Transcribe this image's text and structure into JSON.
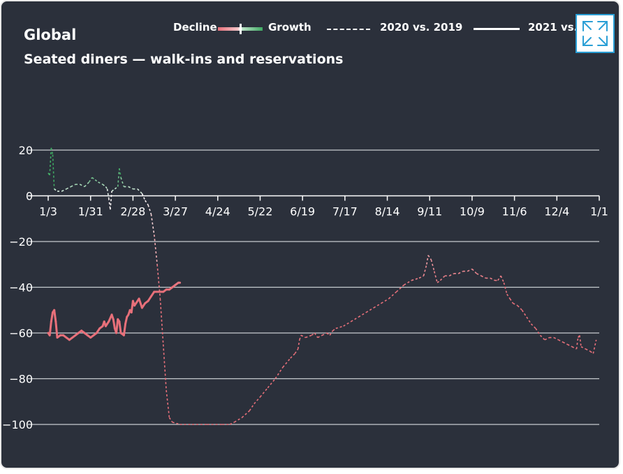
{
  "header": {
    "line1": "Global",
    "line2": "Seated diners — walk-ins and reservations"
  },
  "legend": {
    "decline_label": "Decline",
    "growth_label": "Growth",
    "series_2020_label": "2020 vs. 2019",
    "series_2021_label": "2021 vs. 2"
  },
  "expand_button": {
    "icon": "expand-arrows-icon"
  },
  "colors": {
    "background": "#2b303b",
    "grid": "#c8cbd0",
    "decline": "#e8707a",
    "growth": "#3fa963",
    "neutral": "#ffffff",
    "accent": "#2a9fd6"
  },
  "chart_data": {
    "type": "line",
    "title": "Global",
    "subtitle": "Seated diners — walk-ins and reservations",
    "x_tick_labels": [
      "1/3",
      "1/31",
      "2/28",
      "3/27",
      "4/24",
      "5/22",
      "6/19",
      "7/17",
      "8/14",
      "9/11",
      "10/9",
      "11/6",
      "12/4",
      "1/1"
    ],
    "x_domain_days": [
      0,
      364
    ],
    "y_ticks": [
      20,
      0,
      -20,
      -40,
      -60,
      -80,
      -100
    ],
    "ylim": [
      -100,
      20
    ],
    "grid": "horizontal",
    "legend_position": "top",
    "series": [
      {
        "name": "2020 vs. 2019",
        "style": "dashed",
        "points": [
          [
            0,
            10
          ],
          [
            1,
            9
          ],
          [
            2,
            21
          ],
          [
            3,
            18
          ],
          [
            4,
            3
          ],
          [
            6,
            2
          ],
          [
            9,
            2
          ],
          [
            12,
            3
          ],
          [
            15,
            4
          ],
          [
            18,
            5
          ],
          [
            21,
            5
          ],
          [
            24,
            4
          ],
          [
            27,
            6
          ],
          [
            29,
            8
          ],
          [
            31,
            7
          ],
          [
            33,
            6
          ],
          [
            36,
            5
          ],
          [
            38,
            4
          ],
          [
            39,
            3
          ],
          [
            40,
            -1
          ],
          [
            41,
            -6
          ],
          [
            42,
            2
          ],
          [
            44,
            3
          ],
          [
            46,
            4
          ],
          [
            47,
            12
          ],
          [
            48,
            8
          ],
          [
            50,
            4
          ],
          [
            53,
            4
          ],
          [
            56,
            3
          ],
          [
            59,
            3
          ],
          [
            62,
            1
          ],
          [
            64,
            -2
          ],
          [
            66,
            -4
          ],
          [
            68,
            -8
          ],
          [
            70,
            -17
          ],
          [
            72,
            -30
          ],
          [
            74,
            -45
          ],
          [
            76,
            -65
          ],
          [
            78,
            -85
          ],
          [
            80,
            -97
          ],
          [
            82,
            -99
          ],
          [
            87,
            -100
          ],
          [
            95,
            -100
          ],
          [
            105,
            -100
          ],
          [
            115,
            -100
          ],
          [
            120,
            -100
          ],
          [
            123,
            -99
          ],
          [
            128,
            -97
          ],
          [
            133,
            -94
          ],
          [
            136,
            -91
          ],
          [
            140,
            -88
          ],
          [
            145,
            -84
          ],
          [
            150,
            -80
          ],
          [
            155,
            -75
          ],
          [
            160,
            -71
          ],
          [
            163,
            -69
          ],
          [
            165,
            -67
          ],
          [
            166,
            -63
          ],
          [
            167,
            -61
          ],
          [
            170,
            -62
          ],
          [
            174,
            -61
          ],
          [
            176,
            -60
          ],
          [
            178,
            -62
          ],
          [
            181,
            -61
          ],
          [
            184,
            -60
          ],
          [
            186,
            -61
          ],
          [
            188,
            -59
          ],
          [
            190,
            -58
          ],
          [
            195,
            -57
          ],
          [
            200,
            -55
          ],
          [
            205,
            -53
          ],
          [
            210,
            -51
          ],
          [
            215,
            -49
          ],
          [
            220,
            -47
          ],
          [
            225,
            -45
          ],
          [
            230,
            -42
          ],
          [
            235,
            -39
          ],
          [
            240,
            -37
          ],
          [
            245,
            -36
          ],
          [
            248,
            -35
          ],
          [
            250,
            -30
          ],
          [
            251,
            -26
          ],
          [
            253,
            -28
          ],
          [
            255,
            -33
          ],
          [
            257,
            -38
          ],
          [
            259,
            -37
          ],
          [
            262,
            -35
          ],
          [
            265,
            -35
          ],
          [
            268,
            -34
          ],
          [
            271,
            -34
          ],
          [
            274,
            -33
          ],
          [
            277,
            -33
          ],
          [
            280,
            -32
          ],
          [
            283,
            -34
          ],
          [
            286,
            -35
          ],
          [
            289,
            -36
          ],
          [
            292,
            -36
          ],
          [
            295,
            -37
          ],
          [
            297,
            -37
          ],
          [
            299,
            -35
          ],
          [
            301,
            -38
          ],
          [
            303,
            -43
          ],
          [
            305,
            -45
          ],
          [
            307,
            -47
          ],
          [
            310,
            -48
          ],
          [
            313,
            -50
          ],
          [
            316,
            -53
          ],
          [
            319,
            -56
          ],
          [
            322,
            -58
          ],
          [
            325,
            -61
          ],
          [
            328,
            -63
          ],
          [
            331,
            -62
          ],
          [
            334,
            -62
          ],
          [
            337,
            -63
          ],
          [
            340,
            -64
          ],
          [
            343,
            -65
          ],
          [
            346,
            -66
          ],
          [
            349,
            -67
          ],
          [
            350,
            -62
          ],
          [
            351,
            -61
          ],
          [
            352,
            -66
          ],
          [
            355,
            -67
          ],
          [
            358,
            -68
          ],
          [
            360,
            -69
          ],
          [
            362,
            -63
          ]
        ]
      },
      {
        "name": "2021 vs. 2",
        "style": "solid",
        "points": [
          [
            0,
            -60
          ],
          [
            1,
            -61
          ],
          [
            2,
            -55
          ],
          [
            3,
            -51
          ],
          [
            4,
            -50
          ],
          [
            5,
            -55
          ],
          [
            6,
            -62
          ],
          [
            8,
            -61
          ],
          [
            10,
            -61
          ],
          [
            12,
            -62
          ],
          [
            14,
            -63
          ],
          [
            16,
            -62
          ],
          [
            18,
            -61
          ],
          [
            20,
            -60
          ],
          [
            22,
            -59
          ],
          [
            24,
            -60
          ],
          [
            26,
            -61
          ],
          [
            28,
            -62
          ],
          [
            30,
            -61
          ],
          [
            32,
            -60
          ],
          [
            34,
            -58
          ],
          [
            36,
            -57
          ],
          [
            37,
            -55
          ],
          [
            38,
            -57
          ],
          [
            40,
            -55
          ],
          [
            42,
            -52
          ],
          [
            43,
            -54
          ],
          [
            44,
            -58
          ],
          [
            45,
            -60
          ],
          [
            46,
            -54
          ],
          [
            47,
            -55
          ],
          [
            48,
            -60
          ],
          [
            50,
            -61
          ],
          [
            51,
            -56
          ],
          [
            52,
            -53
          ],
          [
            53,
            -52
          ],
          [
            54,
            -50
          ],
          [
            55,
            -51
          ],
          [
            56,
            -46
          ],
          [
            57,
            -48
          ],
          [
            58,
            -47
          ],
          [
            60,
            -45
          ],
          [
            62,
            -49
          ],
          [
            64,
            -47
          ],
          [
            66,
            -46
          ],
          [
            68,
            -44
          ],
          [
            70,
            -42
          ],
          [
            72,
            -42
          ],
          [
            74,
            -42
          ],
          [
            76,
            -42
          ],
          [
            78,
            -41
          ],
          [
            80,
            -41
          ],
          [
            82,
            -40
          ],
          [
            84,
            -39
          ],
          [
            86,
            -38
          ],
          [
            87,
            -38
          ]
        ]
      }
    ]
  }
}
